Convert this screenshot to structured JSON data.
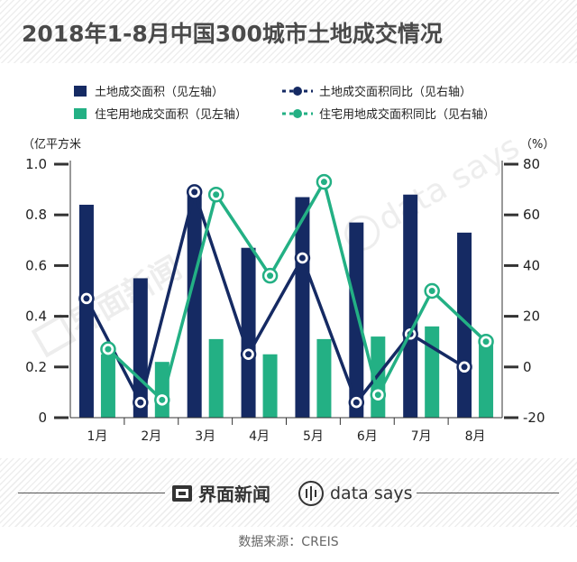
{
  "title": "2018年1-8月中国300城市土地成交情况",
  "colors": {
    "land_area": "#152a63",
    "residential_area": "#23b084",
    "axis": "#333333"
  },
  "watermark_brand": "界面新闻",
  "watermark_ds": "data says",
  "footer": {
    "brand": "界面新闻",
    "data_says": "data says",
    "source": "数据来源：CREIS"
  },
  "chart_data": {
    "type": "bar",
    "categories": [
      "1月",
      "2月",
      "3月",
      "4月",
      "5月",
      "6月",
      "7月",
      "8月"
    ],
    "left_axis": {
      "unit": "（亿平方米",
      "ylim": [
        0,
        1.0
      ],
      "ticks": [
        "0",
        "0.2",
        "0.4",
        "0.6",
        "0.8",
        "1.0"
      ]
    },
    "right_axis": {
      "unit": "（%）",
      "ylim": [
        -20,
        80
      ],
      "ticks": [
        "-20",
        "0",
        "20",
        "40",
        "60",
        "80"
      ]
    },
    "series": [
      {
        "name": "土地成交面积（见左轴）",
        "type": "bar",
        "axis": "left",
        "values": [
          0.84,
          0.55,
          0.9,
          0.67,
          0.87,
          0.77,
          0.88,
          0.73
        ]
      },
      {
        "name": "住宅用地成交面积（见左轴）",
        "type": "bar",
        "axis": "left",
        "values": [
          0.25,
          0.22,
          0.31,
          0.25,
          0.31,
          0.32,
          0.36,
          0.31
        ]
      },
      {
        "name": "土地成交面积同比（见右轴）",
        "type": "line",
        "axis": "right",
        "values": [
          27,
          -14,
          69,
          5,
          43,
          -14,
          13,
          0
        ]
      },
      {
        "name": "住宅用地成交面积同比（见右轴）",
        "type": "line",
        "axis": "right",
        "values": [
          7,
          -13,
          68,
          36,
          73,
          -11,
          30,
          10
        ]
      }
    ]
  }
}
